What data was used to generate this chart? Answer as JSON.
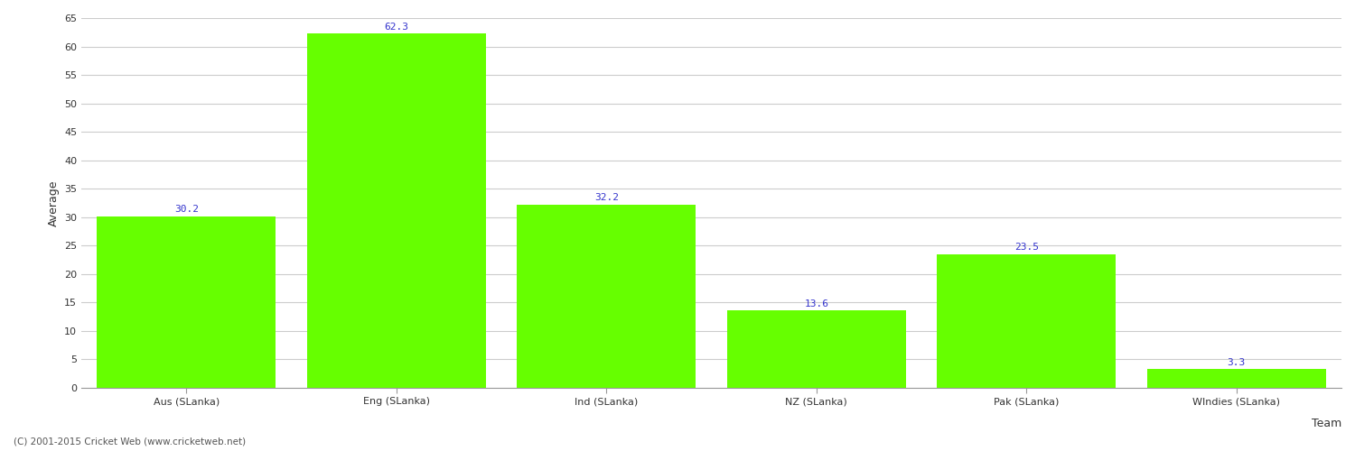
{
  "categories": [
    "Aus (SLanka)",
    "Eng (SLanka)",
    "Ind (SLanka)",
    "NZ (SLanka)",
    "Pak (SLanka)",
    "WIndies (SLanka)"
  ],
  "values": [
    30.2,
    62.3,
    32.2,
    13.6,
    23.5,
    3.3
  ],
  "bar_color": "#66ff00",
  "bar_edge_color": "#66ff00",
  "label_color": "#3333cc",
  "xlabel": "Team",
  "ylabel": "Average",
  "ylim": [
    0,
    65
  ],
  "yticks": [
    0,
    5,
    10,
    15,
    20,
    25,
    30,
    35,
    40,
    45,
    50,
    55,
    60,
    65
  ],
  "background_color": "#ffffff",
  "grid_color": "#cccccc",
  "label_fontsize": 8,
  "axis_label_fontsize": 9,
  "tick_fontsize": 8,
  "footer_text": "(C) 2001-2015 Cricket Web (www.cricketweb.net)",
  "footer_fontsize": 7.5,
  "footer_color": "#555555"
}
